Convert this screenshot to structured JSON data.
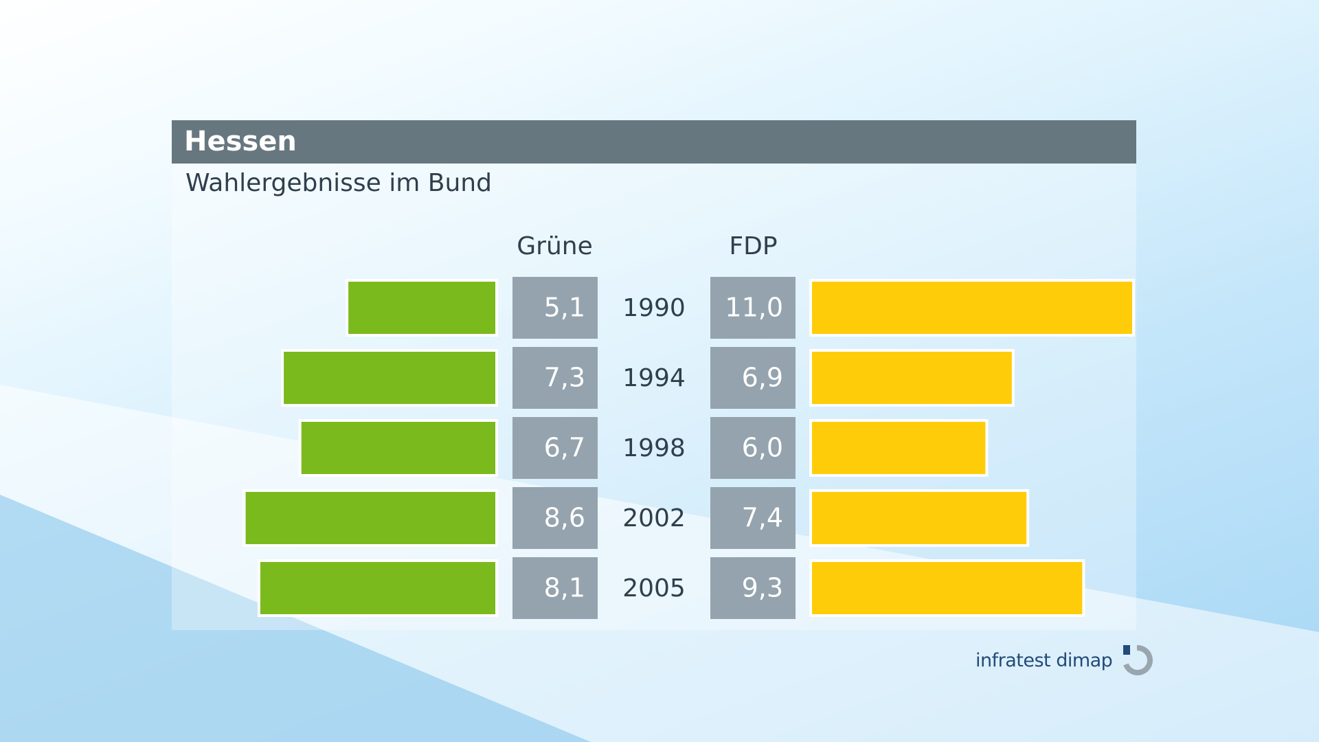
{
  "title": "Hessen",
  "subtitle": "Wahlergebnisse im Bund",
  "logo_text": "infratest dimap",
  "colors": {
    "gruene": "#7aba1c",
    "fdp": "#ffcc0a",
    "value_box": "#94a3ad",
    "title_bar": "#67777f",
    "text": "#2f3f4c"
  },
  "chart_data": {
    "type": "bar",
    "orientation": "horizontal-butterfly",
    "categories": [
      "1990",
      "1994",
      "1998",
      "2002",
      "2005"
    ],
    "series": [
      {
        "name": "Grüne",
        "values": [
          5.1,
          7.3,
          6.7,
          8.6,
          8.1
        ],
        "labels": [
          "5,1",
          "7,3",
          "6,7",
          "8,6",
          "8,1"
        ]
      },
      {
        "name": "FDP",
        "values": [
          11.0,
          6.9,
          6.0,
          7.4,
          9.3
        ],
        "labels": [
          "11,0",
          "6,9",
          "6,0",
          "7,4",
          "9,3"
        ]
      }
    ],
    "title": "Hessen",
    "subtitle": "Wahlergebnisse im Bund",
    "xlim": [
      0,
      11
    ]
  }
}
